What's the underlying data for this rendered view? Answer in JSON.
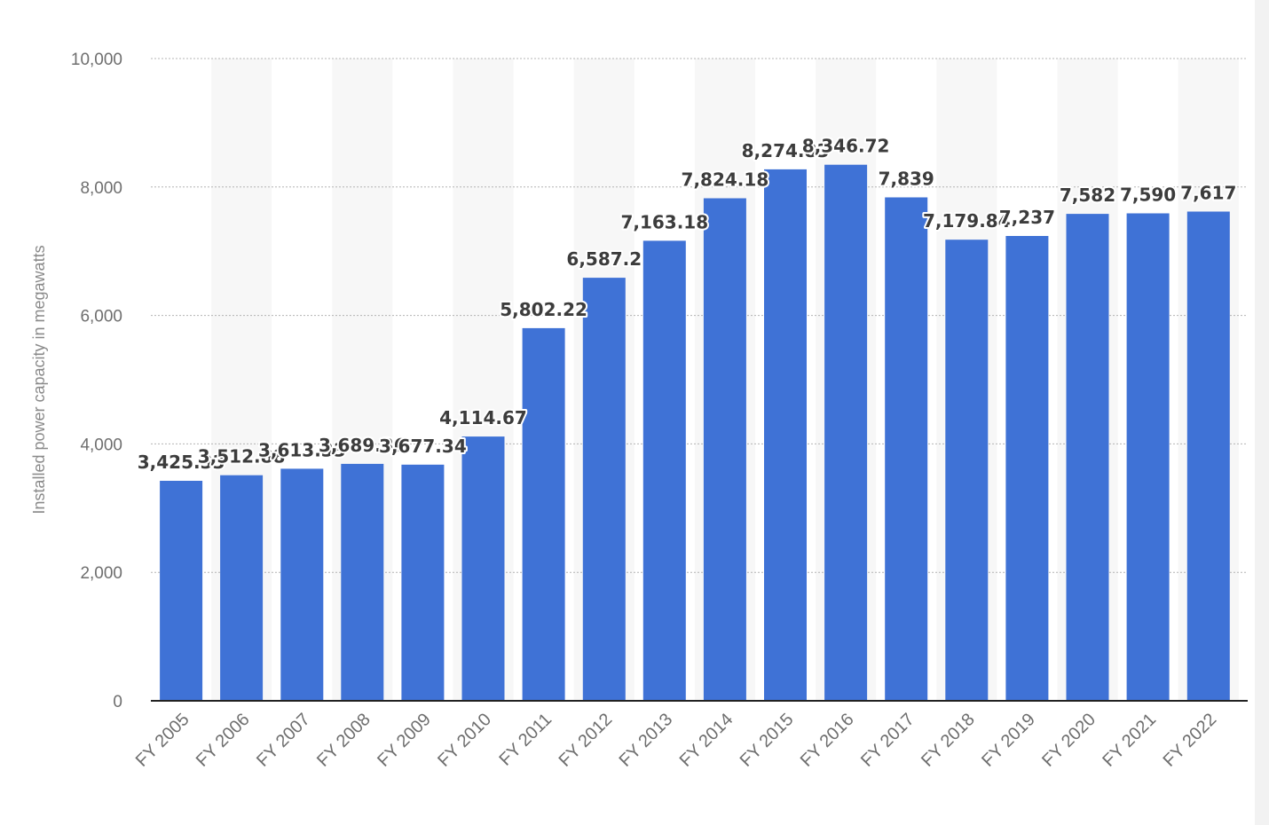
{
  "colors": {
    "bar": "#3f72d6",
    "band": "#f7f7f7",
    "grid": "#b4b4b4"
  },
  "chart_data": {
    "type": "bar",
    "title": "",
    "xlabel": "",
    "ylabel": "Installed power capacity in megawatts",
    "ylim": [
      0,
      10000
    ],
    "yticks": [
      0,
      2000,
      4000,
      6000,
      8000,
      10000
    ],
    "ytick_labels": [
      "0",
      "2,000",
      "4,000",
      "6,000",
      "8,000",
      "10,000"
    ],
    "grid": true,
    "categories": [
      "FY 2005",
      "FY 2006",
      "FY 2007",
      "FY 2008",
      "FY 2009",
      "FY 2010",
      "FY 2011",
      "FY 2012",
      "FY 2013",
      "FY 2014",
      "FY 2015",
      "FY 2016",
      "FY 2017",
      "FY 2018",
      "FY 2019",
      "FY 2020",
      "FY 2021",
      "FY 2022"
    ],
    "values": [
      3425.33,
      3512.88,
      3613.33,
      3689.36,
      3677.34,
      4114.67,
      5802.22,
      6587.2,
      7163.18,
      7824.18,
      8274.83,
      8346.72,
      7839,
      7179.84,
      7237,
      7582,
      7590,
      7617
    ],
    "value_labels": [
      "3,425.33",
      "3,512.88",
      "3,613.33",
      "3,689.36",
      "3,677.34",
      "4,114.67",
      "5,802.22",
      "6,587.2",
      "7,163.18",
      "7,824.18",
      "8,274.83",
      "8,346.72",
      "7,839",
      "7,179.84",
      "7,237",
      "7,582",
      "7,590",
      "7,617"
    ]
  }
}
